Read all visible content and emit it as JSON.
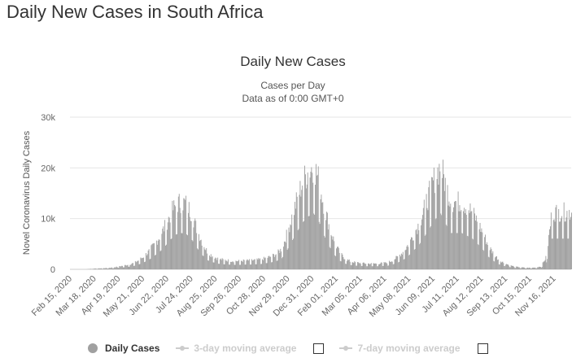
{
  "page": {
    "heading": "Daily New Cases in South Africa"
  },
  "chart_data": {
    "type": "bar",
    "title": "Daily New Cases",
    "subtitle_line1": "Cases per Day",
    "subtitle_line2": "Data as of 0:00 GMT+0",
    "ylabel": "Novel Coronavirus Daily Cases",
    "xlabel": "",
    "ylim": [
      0,
      30000
    ],
    "y_ticks": [
      0,
      10000,
      20000,
      30000
    ],
    "y_tick_labels": [
      "0",
      "10k",
      "20k",
      "30k"
    ],
    "x_range": [
      "2020-02-15",
      "2021-12-09"
    ],
    "x_tick_labels": [
      "Feb 15, 2020",
      "Mar 18, 2020",
      "Apr 19, 2020",
      "May 21, 2020",
      "Jun 22, 2020",
      "Jul 24, 2020",
      "Aug 25, 2020",
      "Sep 26, 2020",
      "Oct 28, 2020",
      "Nov 29, 2020",
      "Dec 31, 2020",
      "Feb 01, 2021",
      "Mar 05, 2021",
      "Apr 06, 2021",
      "May 08, 2021",
      "Jun 09, 2021",
      "Jul 11, 2021",
      "Aug 12, 2021",
      "Sep 13, 2021",
      "Oct 15, 2021",
      "Nov 16, 2021"
    ],
    "grid": true,
    "legend_position": "bottom",
    "color": "#a0a0a0",
    "series_approx_weekly": {
      "name": "Daily Cases",
      "start": "2020-02-15",
      "step_days": 7,
      "values": [
        0,
        0,
        0,
        0,
        100,
        150,
        200,
        250,
        350,
        500,
        700,
        900,
        1200,
        1800,
        2600,
        3600,
        5000,
        6500,
        8500,
        10800,
        12500,
        13000,
        12500,
        10500,
        7500,
        5000,
        3200,
        2500,
        2000,
        1800,
        1700,
        1600,
        1600,
        1700,
        1700,
        1800,
        1900,
        2200,
        2500,
        3000,
        4000,
        7000,
        10500,
        14000,
        17000,
        19000,
        20000,
        17000,
        12000,
        8000,
        5000,
        3000,
        2000,
        1500,
        1300,
        1200,
        1100,
        1100,
        1100,
        1200,
        1300,
        1800,
        2500,
        3500,
        5000,
        7000,
        9000,
        12000,
        15000,
        18000,
        20000,
        16000,
        13000,
        13000,
        13000,
        12000,
        11000,
        9000,
        7000,
        4500,
        3000,
        1800,
        1200,
        800,
        500,
        400,
        300,
        300,
        350,
        600,
        2500,
        11000
      ]
    }
  },
  "legend": {
    "items": [
      {
        "label": "Daily Cases",
        "active": true
      },
      {
        "label": "3-day moving average",
        "active": false
      },
      {
        "label": "7-day moving average",
        "active": false
      }
    ]
  }
}
